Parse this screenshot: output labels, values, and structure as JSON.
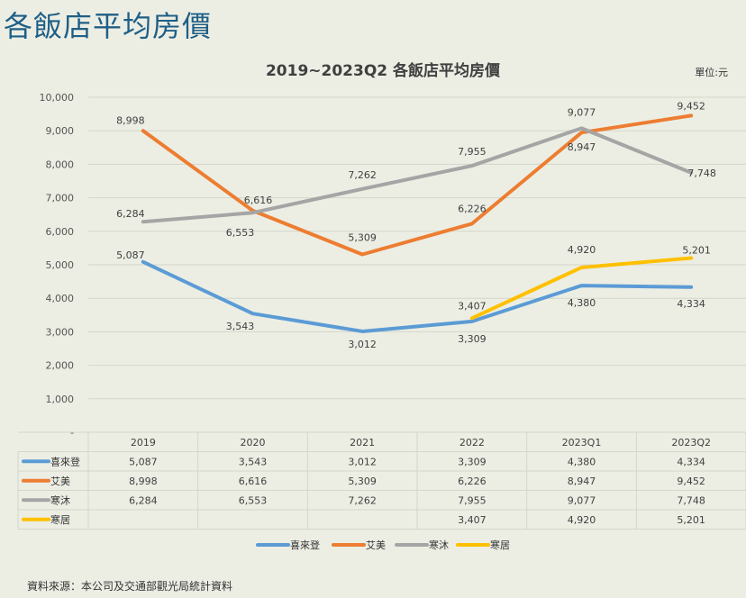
{
  "page": {
    "heading": "各飯店平均房價",
    "source": "資料來源：本公司及交通部觀光局統計資料"
  },
  "chart_data": {
    "type": "line",
    "title": "2019~2023Q2 各飯店平均房價",
    "unit_label": "單位:元",
    "categories": [
      "2019",
      "2020",
      "2021",
      "2022",
      "2023Q1",
      "2023Q2"
    ],
    "ylim": [
      0,
      10000
    ],
    "yticks": [
      "-",
      "1,000",
      "2,000",
      "3,000",
      "4,000",
      "5,000",
      "6,000",
      "7,000",
      "8,000",
      "9,000",
      "10,000"
    ],
    "grid": true,
    "legend_position": "bottom",
    "has_data_table": true,
    "series": [
      {
        "name": "喜來登",
        "color": "#5b9bd5",
        "values": [
          5087,
          3543,
          3012,
          3309,
          4380,
          4334
        ],
        "labels": [
          "5,087",
          "3,543",
          "3,012",
          "3,309",
          "4,380",
          "4,334"
        ]
      },
      {
        "name": "艾美",
        "color": "#ed7d31",
        "values": [
          8998,
          6616,
          5309,
          6226,
          8947,
          9452
        ],
        "labels": [
          "8,998",
          "6,616",
          "5,309",
          "6,226",
          "8,947",
          "9,452"
        ]
      },
      {
        "name": "寒沐",
        "color": "#a5a5a5",
        "values": [
          6284,
          6553,
          7262,
          7955,
          9077,
          7748
        ],
        "labels": [
          "6,284",
          "6,553",
          "7,262",
          "7,955",
          "9,077",
          "7,748"
        ]
      },
      {
        "name": "寒居",
        "color": "#ffc000",
        "values": [
          null,
          null,
          null,
          3407,
          4920,
          5201
        ],
        "labels": [
          "",
          "",
          "",
          "3,407",
          "4,920",
          "5,201"
        ]
      }
    ]
  }
}
